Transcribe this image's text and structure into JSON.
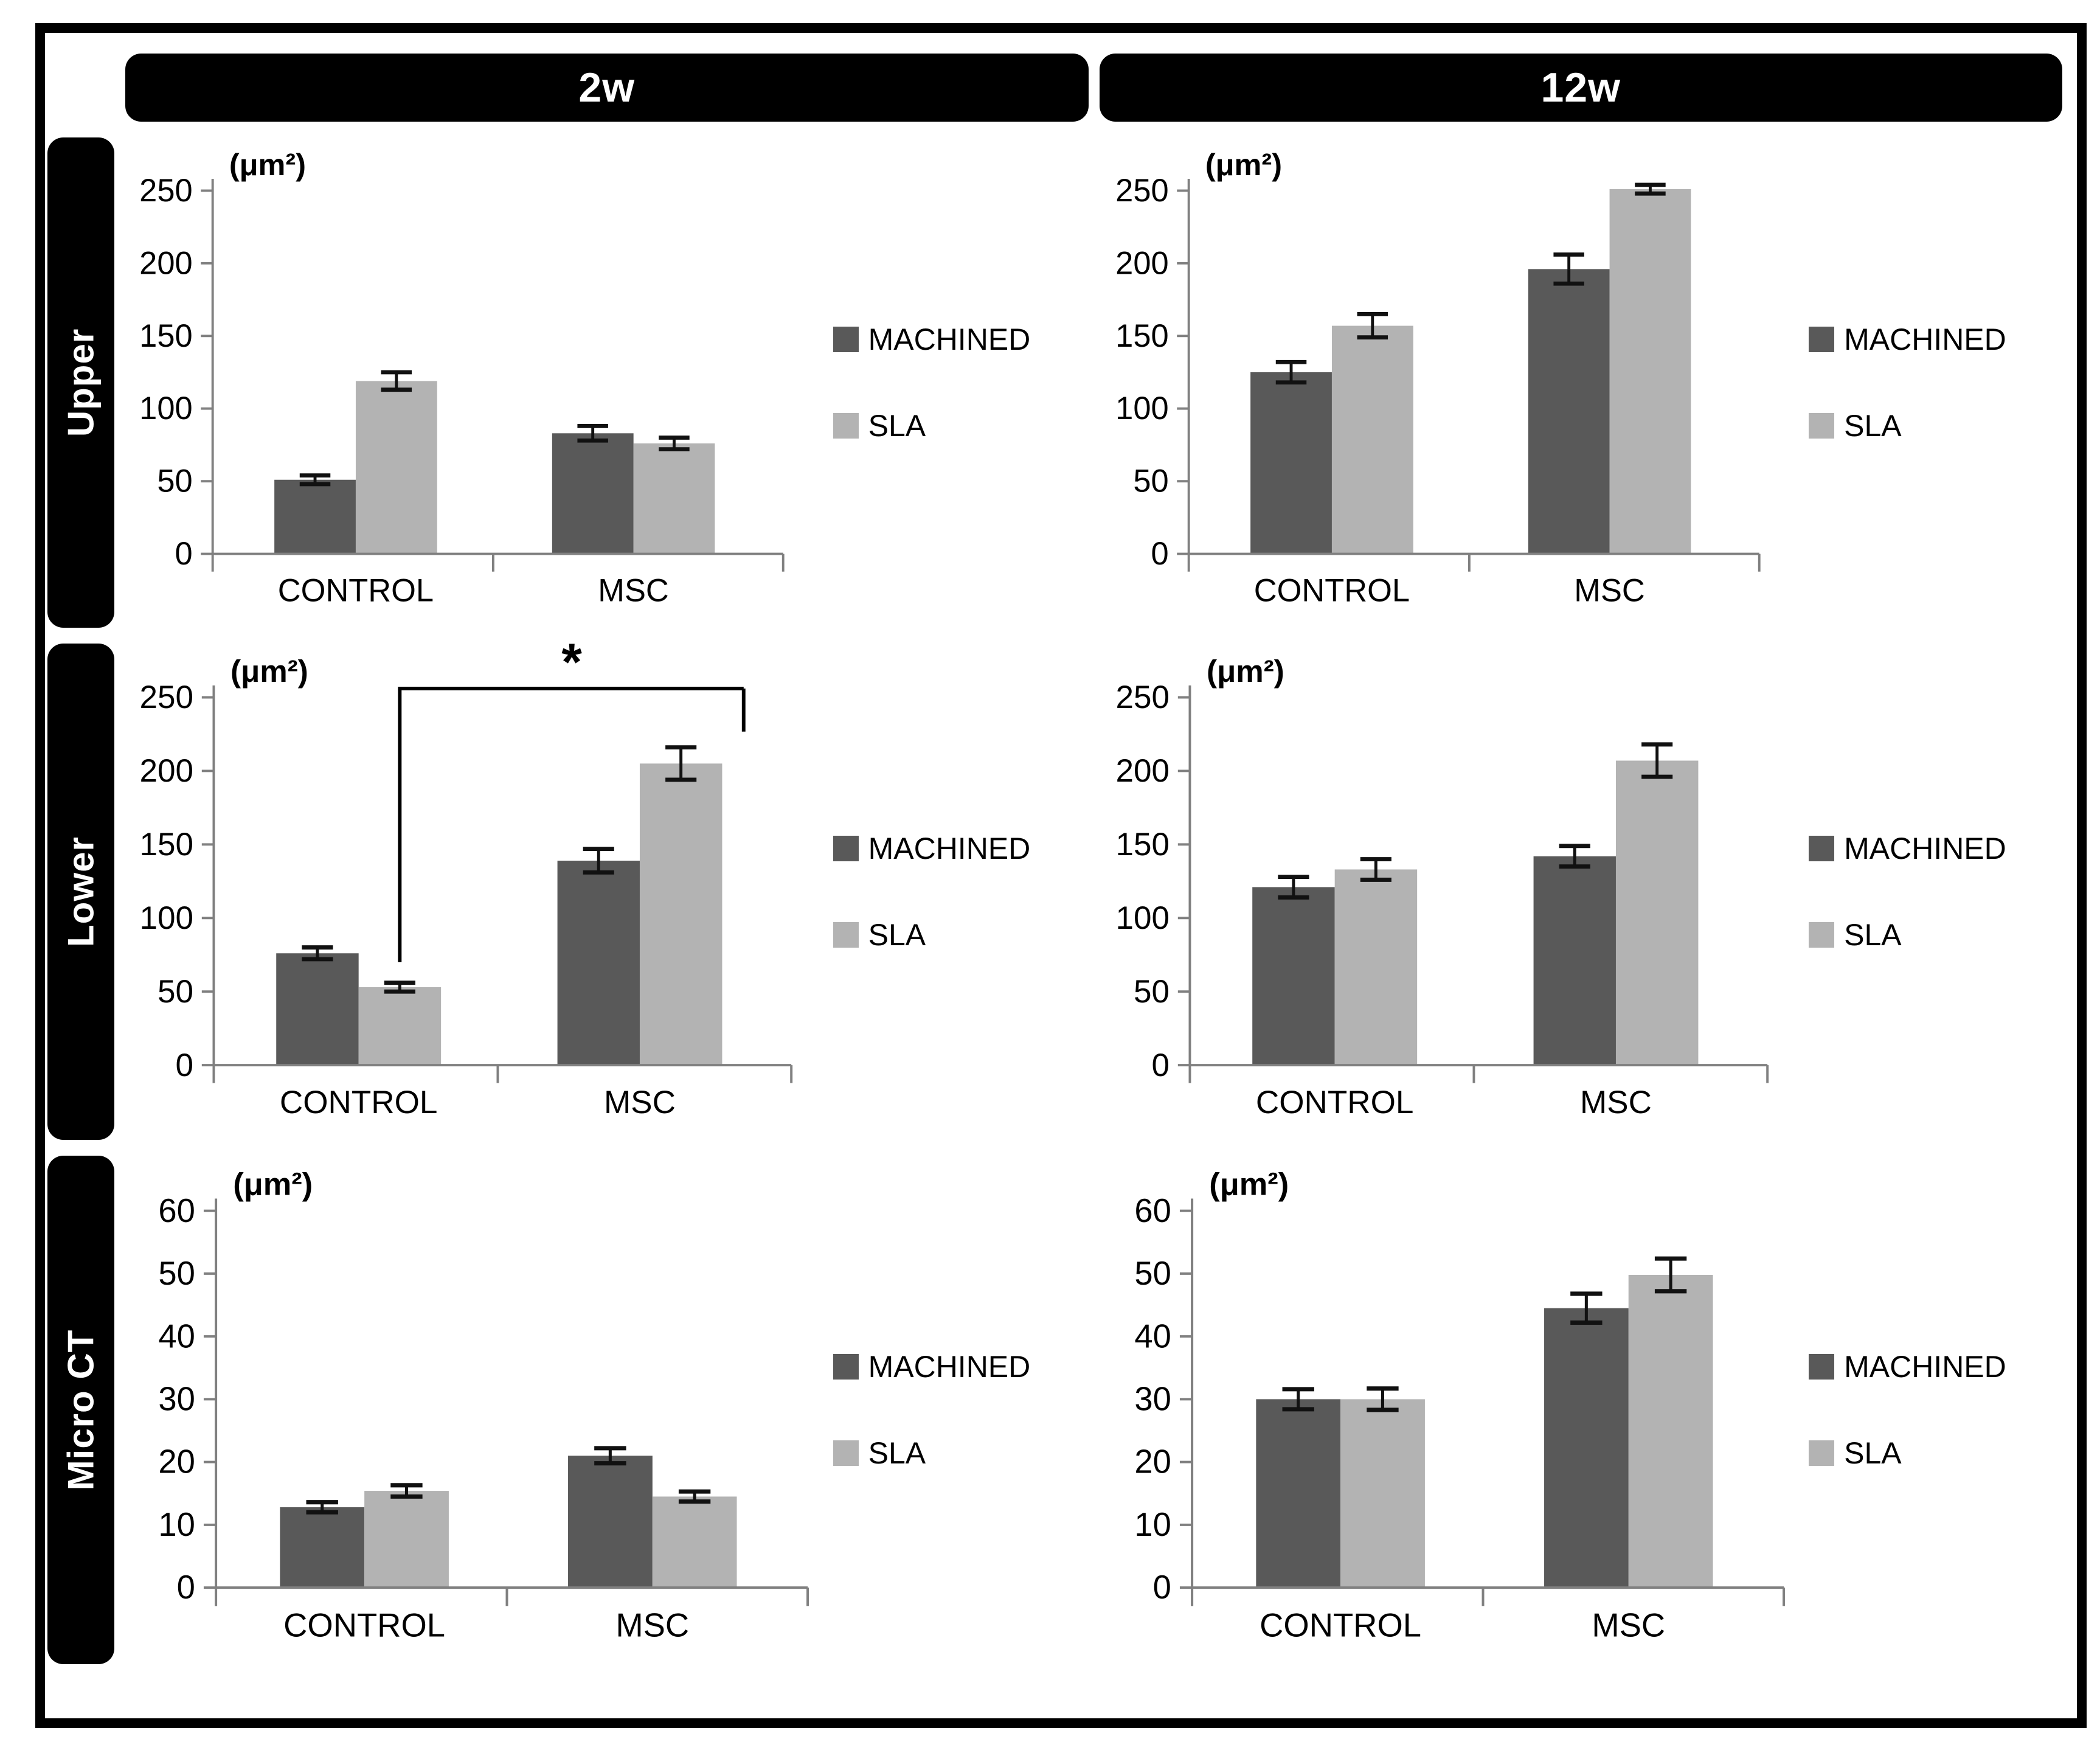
{
  "figure": {
    "unit_label": "(μm²)",
    "description": "Grouped bar charts of new bone area by implant surface and cell treatment at two time points"
  },
  "headers": [
    {
      "label": "2w"
    },
    {
      "label": "12w"
    }
  ],
  "rows": [
    {
      "label": "Upper"
    },
    {
      "label": "Lower"
    },
    {
      "label": "Micro CT"
    }
  ],
  "legend": {
    "machined": "MACHINED",
    "sla": "SLA"
  },
  "colors": {
    "machined": "#595959",
    "sla": "#b3b3b3",
    "axis": "#808080",
    "error": "#111111",
    "label_bg": "#000000",
    "label_text": "#ffffff"
  },
  "chart_data": [
    {
      "id": "upper-2w",
      "row": "Upper",
      "column": "2w",
      "type": "bar",
      "unit": "(μm²)",
      "categories": [
        "CONTROL",
        "MSC"
      ],
      "series": [
        {
          "name": "MACHINED",
          "values": [
            51,
            83
          ],
          "errors": [
            3,
            5
          ]
        },
        {
          "name": "SLA",
          "values": [
            119,
            76
          ],
          "errors": [
            6,
            4
          ]
        }
      ],
      "ylim": [
        0,
        250
      ],
      "yticks": [
        0,
        50,
        100,
        150,
        200,
        250
      ],
      "grid": false,
      "legend_position": "right",
      "significance": null
    },
    {
      "id": "upper-12w",
      "row": "Upper",
      "column": "12w",
      "type": "bar",
      "unit": "(μm²)",
      "categories": [
        "CONTROL",
        "MSC"
      ],
      "series": [
        {
          "name": "MACHINED",
          "values": [
            125,
            196
          ],
          "errors": [
            7,
            10
          ]
        },
        {
          "name": "SLA",
          "values": [
            157,
            251
          ],
          "errors": [
            8,
            3
          ]
        }
      ],
      "ylim": [
        0,
        250
      ],
      "yticks": [
        0,
        50,
        100,
        150,
        200,
        250
      ],
      "grid": false,
      "legend_position": "right",
      "significance": null
    },
    {
      "id": "lower-2w",
      "row": "Lower",
      "column": "2w",
      "type": "bar",
      "unit": "(μm²)",
      "categories": [
        "CONTROL",
        "MSC"
      ],
      "series": [
        {
          "name": "MACHINED",
          "values": [
            76,
            139
          ],
          "errors": [
            4,
            8
          ]
        },
        {
          "name": "SLA",
          "values": [
            53,
            205
          ],
          "errors": [
            3,
            11
          ]
        }
      ],
      "ylim": [
        0,
        250
      ],
      "yticks": [
        0,
        50,
        100,
        150,
        200,
        250
      ],
      "grid": false,
      "legend_position": "right",
      "significance": {
        "label": "*",
        "from_category": "CONTROL",
        "from_series": "SLA",
        "to_category": "MSC",
        "to_series": "SLA"
      }
    },
    {
      "id": "lower-12w",
      "row": "Lower",
      "column": "12w",
      "type": "bar",
      "unit": "(μm²)",
      "categories": [
        "CONTROL",
        "MSC"
      ],
      "series": [
        {
          "name": "MACHINED",
          "values": [
            121,
            142
          ],
          "errors": [
            7,
            7
          ]
        },
        {
          "name": "SLA",
          "values": [
            133,
            207
          ],
          "errors": [
            7,
            11
          ]
        }
      ],
      "ylim": [
        0,
        250
      ],
      "yticks": [
        0,
        50,
        100,
        150,
        200,
        250
      ],
      "grid": false,
      "legend_position": "right",
      "significance": null
    },
    {
      "id": "microct-2w",
      "row": "Micro CT",
      "column": "2w",
      "type": "bar",
      "unit": "(μm²)",
      "categories": [
        "CONTROL",
        "MSC"
      ],
      "series": [
        {
          "name": "MACHINED",
          "values": [
            12.8,
            21
          ],
          "errors": [
            0.8,
            1.2
          ]
        },
        {
          "name": "SLA",
          "values": [
            15.4,
            14.5
          ],
          "errors": [
            0.9,
            0.8
          ]
        }
      ],
      "ylim": [
        0,
        60
      ],
      "yticks": [
        0,
        10,
        20,
        30,
        40,
        50,
        60
      ],
      "grid": false,
      "legend_position": "right",
      "significance": null
    },
    {
      "id": "microct-12w",
      "row": "Micro CT",
      "column": "12w",
      "type": "bar",
      "unit": "(μm²)",
      "categories": [
        "CONTROL",
        "MSC"
      ],
      "series": [
        {
          "name": "MACHINED",
          "values": [
            30,
            44.5
          ],
          "errors": [
            1.6,
            2.3
          ]
        },
        {
          "name": "SLA",
          "values": [
            30,
            49.8
          ],
          "errors": [
            1.7,
            2.6
          ]
        }
      ],
      "ylim": [
        0,
        60
      ],
      "yticks": [
        0,
        10,
        20,
        30,
        40,
        50,
        60
      ],
      "grid": false,
      "legend_position": "right",
      "significance": null
    }
  ]
}
